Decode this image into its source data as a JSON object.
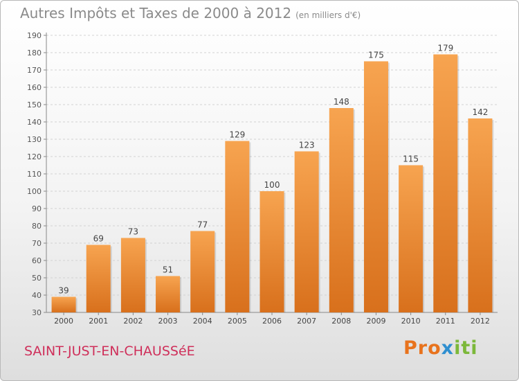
{
  "chart_data": {
    "type": "bar",
    "title": "Autres Impôts et Taxes de 2000 à 2012",
    "subtitle": "(en milliers d'€)",
    "categories": [
      "2000",
      "2001",
      "2002",
      "2003",
      "2004",
      "2005",
      "2006",
      "2007",
      "2008",
      "2009",
      "2010",
      "2011",
      "2012"
    ],
    "values": [
      39,
      69,
      73,
      51,
      77,
      129,
      100,
      123,
      148,
      175,
      115,
      179,
      142
    ],
    "ylim": [
      30,
      190
    ],
    "yticks": [
      30,
      40,
      50,
      60,
      70,
      80,
      90,
      100,
      110,
      120,
      130,
      140,
      150,
      160,
      170,
      180,
      190
    ],
    "grid": true,
    "bar_color_top": "#f7a450",
    "bar_color_bottom": "#d8701c"
  },
  "footer": {
    "town": "SAINT-JUST-EN-CHAUSSéE",
    "logo": {
      "p1": "Pro",
      "p2": "x",
      "p3": "iti"
    }
  }
}
